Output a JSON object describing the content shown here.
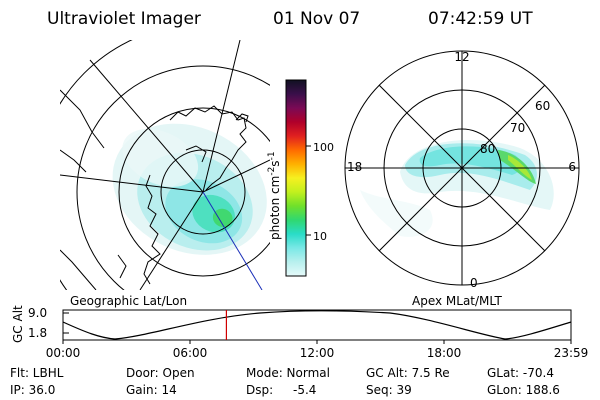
{
  "header": {
    "instrument": "Ultraviolet Imager",
    "date": "01 Nov 07",
    "time": "07:42:59 UT"
  },
  "left_panel": {
    "caption": "Geographic Lat/Lon"
  },
  "right_panel": {
    "caption": "Apex MLat/MLT",
    "mlt_labels": {
      "top": "12",
      "left": "18",
      "right": "6",
      "bottom": "0"
    },
    "lat_labels": [
      "60",
      "70",
      "80"
    ]
  },
  "colorbar": {
    "unit_label": "photon cm",
    "unit_sup1": "-2",
    "unit_mid": "s",
    "unit_sup2": "-1",
    "ticks": [
      "100",
      "10"
    ],
    "colors": [
      "#111122",
      "#3a0f4a",
      "#7a0a55",
      "#b0002a",
      "#e02020",
      "#ff6a00",
      "#ffb000",
      "#f6f020",
      "#c2f01e",
      "#70e02a",
      "#30d870",
      "#2adcc8",
      "#7ae8e6",
      "#b8f0ee",
      "#e6fafa"
    ]
  },
  "timeline": {
    "y_label": "GC Alt",
    "y_ticks": [
      "9.0",
      "1.8"
    ],
    "x_ticks": [
      "00:00",
      "06:00",
      "12:00",
      "18:00",
      "23:59"
    ],
    "marker_time_hours": 7.72
  },
  "info": {
    "row1": [
      "Flt: LBHL",
      "Door: Open",
      "Mode: Normal",
      "GC Alt: 7.5 Re",
      "GLat: -70.4"
    ],
    "row2": [
      "IP: 36.0",
      "Gain: 14",
      "Dsp:",
      "-5.4",
      "Seq: 39",
      "GLon: 188.6"
    ]
  }
}
